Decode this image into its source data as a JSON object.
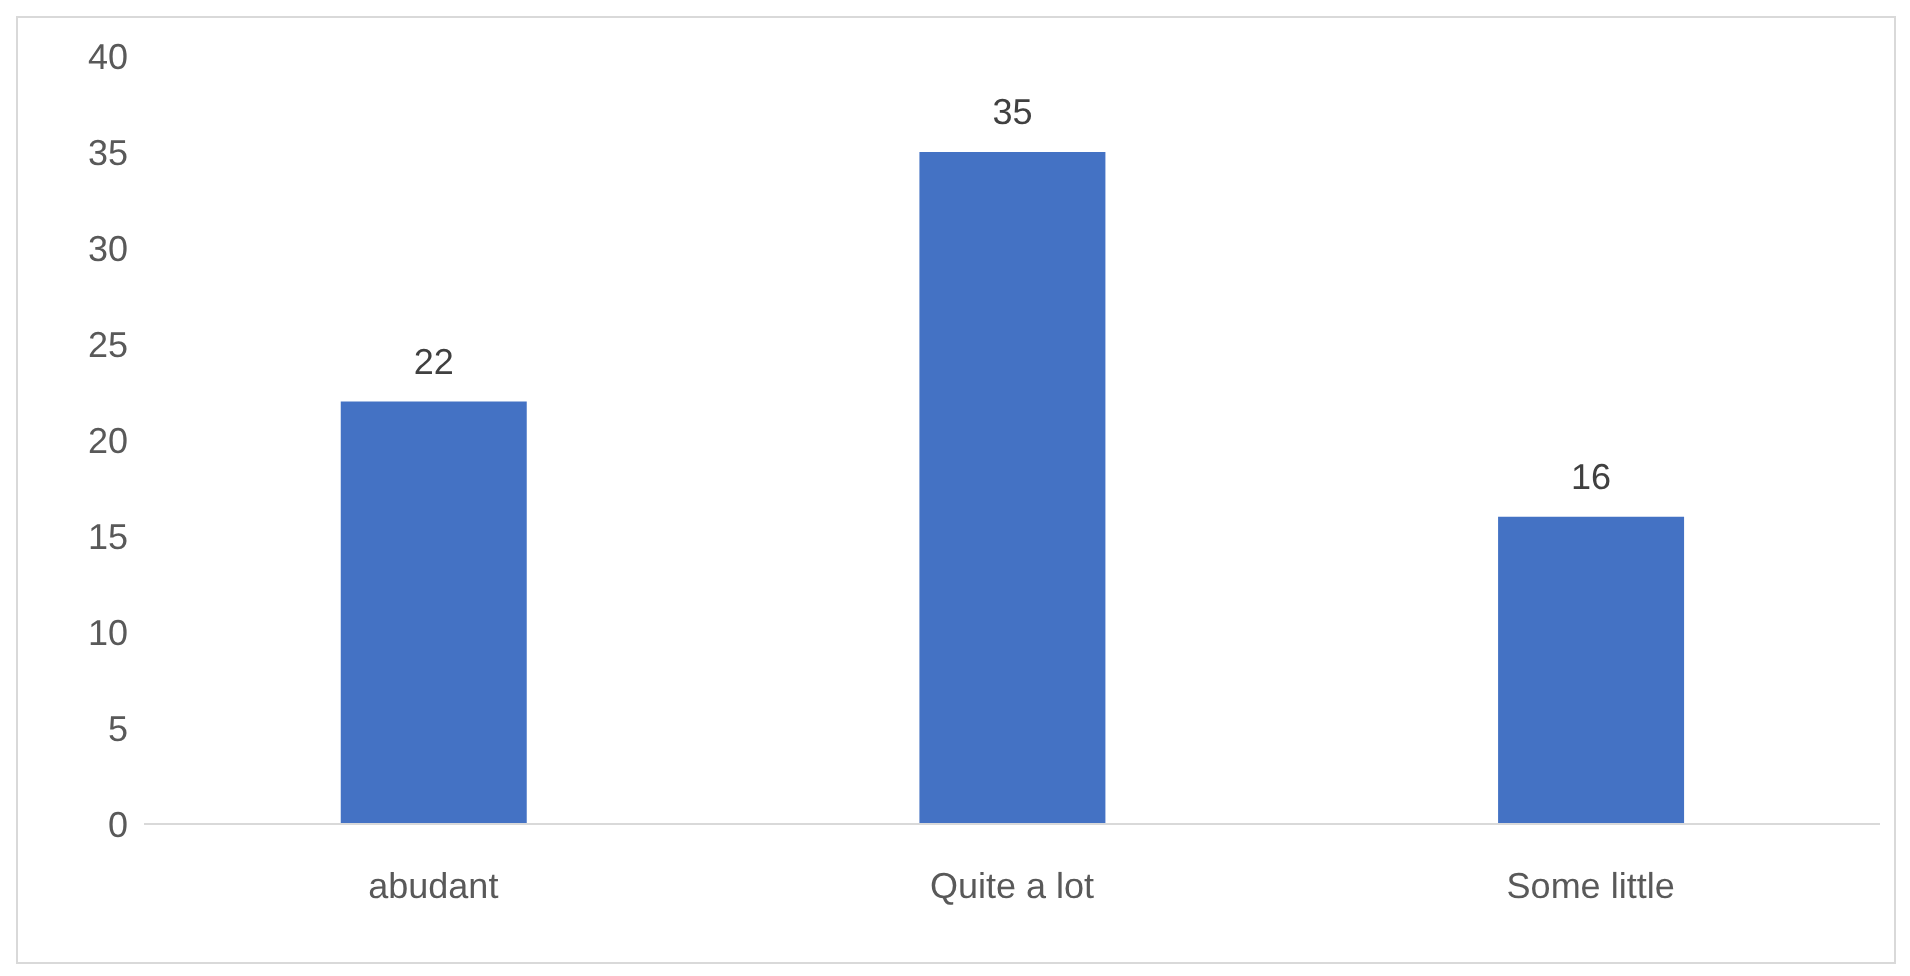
{
  "chart_data": {
    "type": "bar",
    "categories": [
      "abudant",
      "Quite a lot",
      "Some little"
    ],
    "values": [
      22,
      35,
      16
    ],
    "color": "#4472c4",
    "ylim": [
      0,
      40
    ],
    "yticks": [
      0,
      5,
      10,
      15,
      20,
      25,
      30,
      35,
      40
    ],
    "grid": false,
    "data_labels": true
  }
}
